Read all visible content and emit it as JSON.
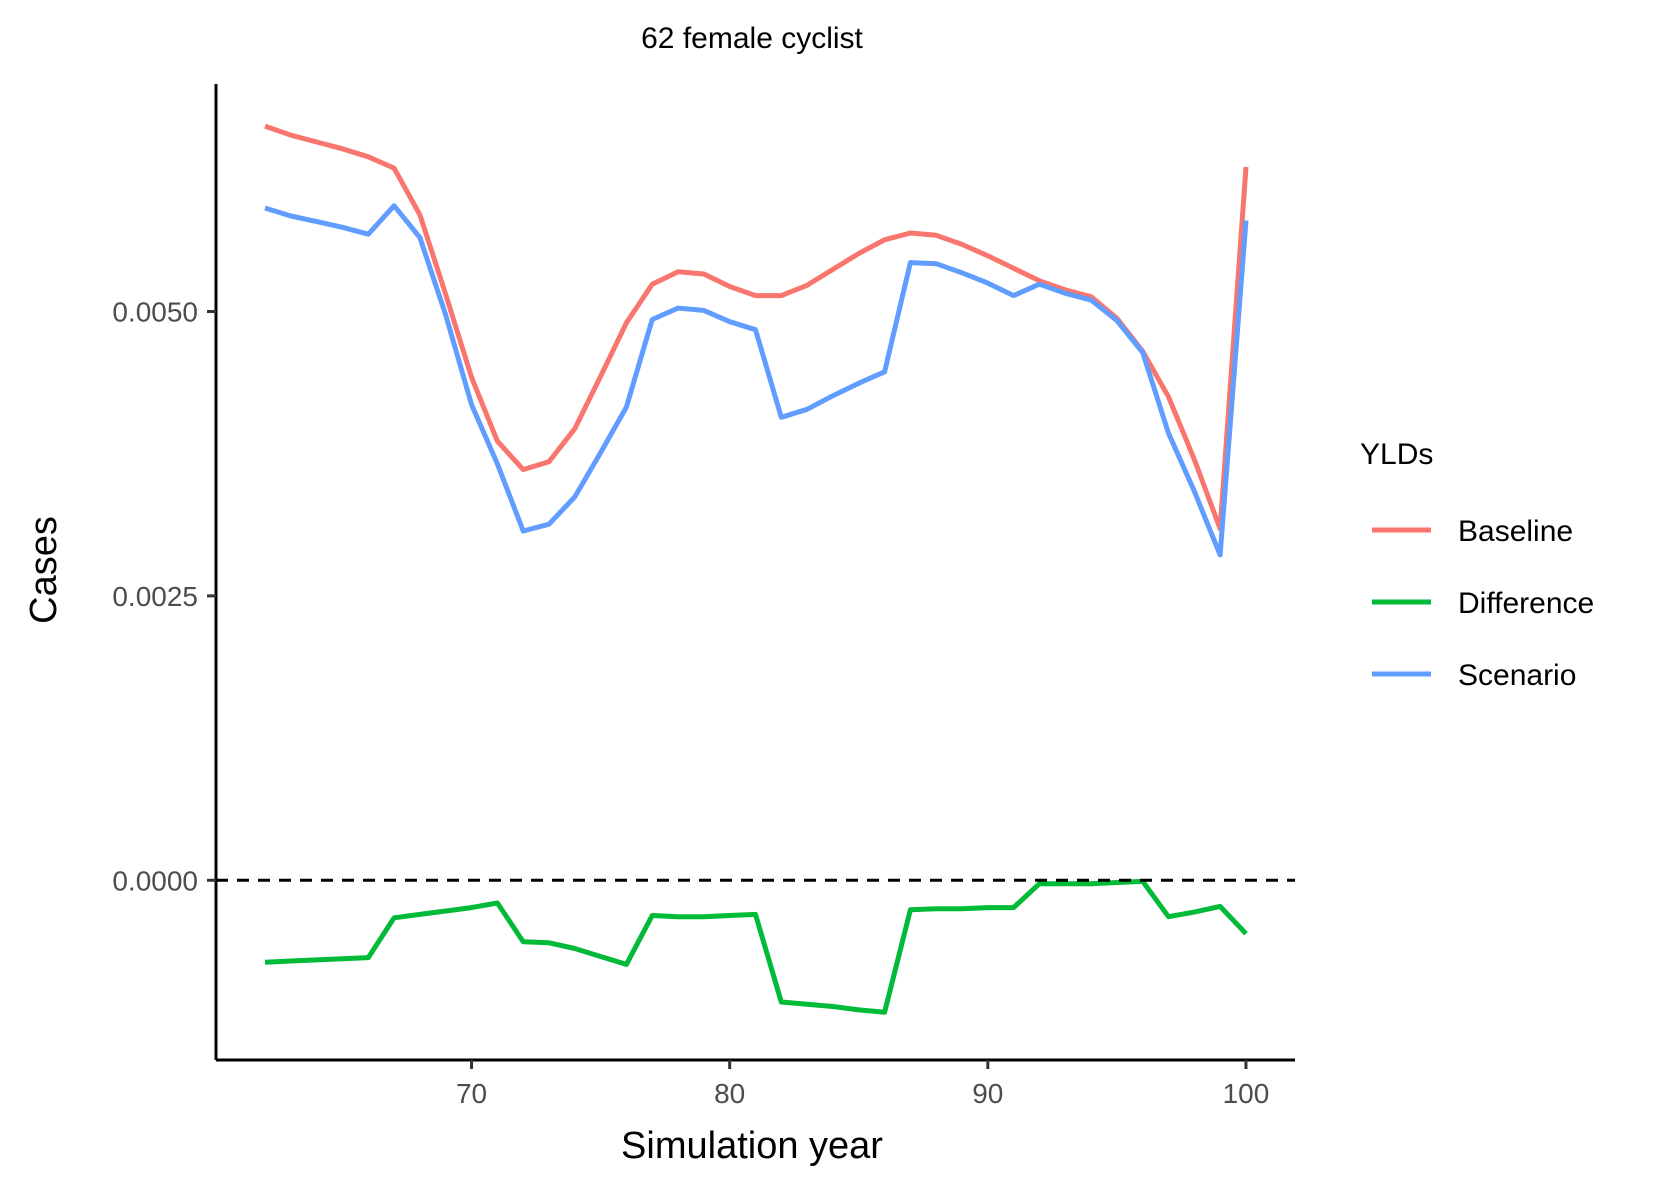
{
  "chart_data": {
    "type": "line",
    "title": "62 female cyclist",
    "xlabel": "Simulation year",
    "ylabel": "Cases",
    "xlim": [
      60.1,
      101.9
    ],
    "ylim": [
      -0.00158,
      0.007
    ],
    "x_ticks": [
      70,
      80,
      90,
      100
    ],
    "x_tick_labels": [
      "70",
      "80",
      "90",
      "100"
    ],
    "y_ticks": [
      0.0,
      0.0025,
      0.005
    ],
    "y_tick_labels": [
      "0.0000",
      "0.0025",
      "0.0050"
    ],
    "grid": false,
    "reference_line": {
      "y": 0.0,
      "style": "dashed"
    },
    "legend": {
      "title": "YLDs",
      "position": "right"
    },
    "x": [
      62,
      63,
      64,
      65,
      66,
      67,
      68,
      69,
      70,
      71,
      72,
      73,
      74,
      75,
      76,
      77,
      78,
      79,
      80,
      81,
      82,
      83,
      84,
      85,
      86,
      87,
      88,
      89,
      90,
      91,
      92,
      93,
      94,
      95,
      96,
      97,
      98,
      99,
      100
    ],
    "series": [
      {
        "name": "Baseline",
        "color": "#f8766d",
        "values": [
          0.00663,
          0.00655,
          0.00649,
          0.00643,
          0.00636,
          0.00626,
          0.00585,
          0.00515,
          0.00442,
          0.00386,
          0.00361,
          0.00368,
          0.00397,
          0.00443,
          0.0049,
          0.00524,
          0.00535,
          0.00533,
          0.00522,
          0.00514,
          0.00514,
          0.00523,
          0.00537,
          0.00551,
          0.00563,
          0.00569,
          0.00567,
          0.00559,
          0.00549,
          0.00538,
          0.00527,
          0.00519,
          0.00513,
          0.00494,
          0.00465,
          0.00425,
          0.0037,
          0.00309,
          0.00627
        ]
      },
      {
        "name": "Difference",
        "color": "#00ba38",
        "values": [
          -0.00072,
          -0.00071,
          -0.0007,
          -0.00069,
          -0.00068,
          -0.00033,
          -0.0003,
          -0.00027,
          -0.00024,
          -0.0002,
          -0.00054,
          -0.00055,
          -0.0006,
          -0.00067,
          -0.00074,
          -0.00031,
          -0.00032,
          -0.00032,
          -0.00031,
          -0.0003,
          -0.00107,
          -0.00109,
          -0.00111,
          -0.00114,
          -0.00116,
          -0.00026,
          -0.00025,
          -0.00025,
          -0.00024,
          -0.00024,
          -3e-05,
          -3e-05,
          -3e-05,
          -2e-05,
          -1e-05,
          -0.00032,
          -0.00028,
          -0.00023,
          -0.00047
        ]
      },
      {
        "name": "Scenario",
        "color": "#619cff",
        "values": [
          0.00591,
          0.00584,
          0.00579,
          0.00574,
          0.00568,
          0.00593,
          0.00565,
          0.00497,
          0.00418,
          0.00366,
          0.00307,
          0.00313,
          0.00337,
          0.00376,
          0.00416,
          0.00493,
          0.00503,
          0.00501,
          0.00491,
          0.00484,
          0.00407,
          0.00414,
          0.00426,
          0.00437,
          0.00447,
          0.00543,
          0.00542,
          0.00534,
          0.00525,
          0.00514,
          0.00524,
          0.00516,
          0.0051,
          0.00492,
          0.00464,
          0.00393,
          0.00342,
          0.00286,
          0.0058
        ]
      }
    ]
  }
}
